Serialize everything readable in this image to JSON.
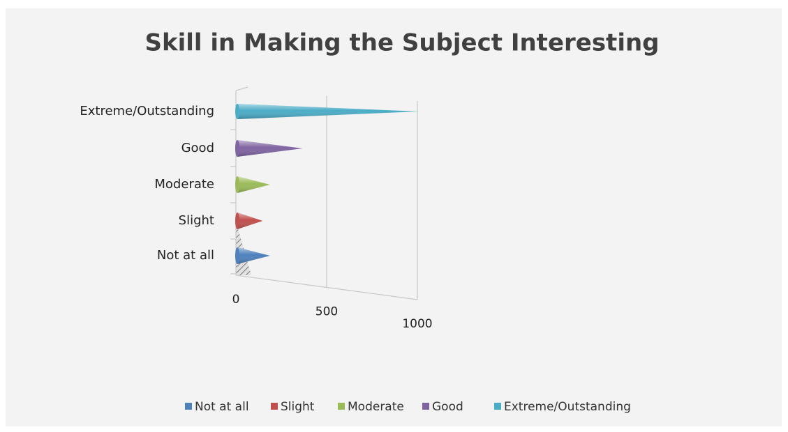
{
  "chart_data": {
    "type": "bar",
    "title": "Skill in Making the Subject Interesting",
    "categories": [
      "Not at all",
      "Slight",
      "Moderate",
      "Good",
      "Extreme/Outstanding"
    ],
    "values": [
      180,
      140,
      180,
      360,
      1000
    ],
    "colors": [
      "#4f81bd",
      "#c0504d",
      "#9bbb59",
      "#8064a2",
      "#4bacc6"
    ],
    "xlim": [
      0,
      1000
    ],
    "xticks": [
      0,
      500,
      1000
    ]
  }
}
